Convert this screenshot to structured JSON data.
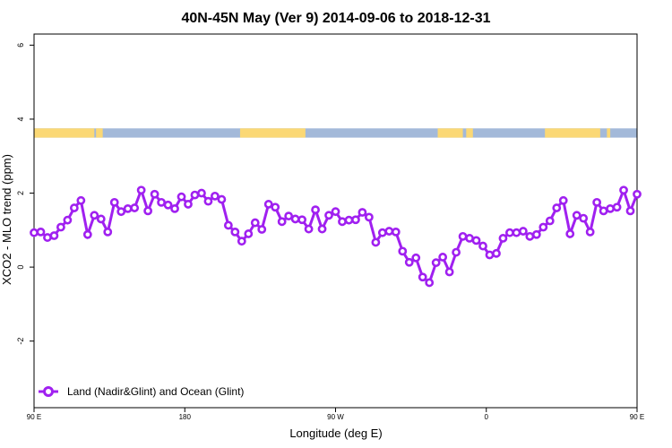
{
  "chart_data": {
    "type": "line",
    "title": "40N-45N May (Ver 9)   2014-09-06 to 2018-12-31",
    "xlabel": "Longitude (deg E)",
    "ylabel": "XCO2 - MLO trend (ppm)",
    "xlim": [
      90,
      450
    ],
    "ylim": [
      -3.8,
      6.3
    ],
    "x_ticks": [
      {
        "value": 90,
        "label": "90 E"
      },
      {
        "value": 180,
        "label": "180"
      },
      {
        "value": 270,
        "label": "90 W"
      },
      {
        "value": 360,
        "label": "0"
      },
      {
        "value": 450,
        "label": "90 E"
      },
      {
        "value": 540,
        "label": "180"
      }
    ],
    "y_ticks": [
      {
        "value": -2,
        "label": "-2"
      },
      {
        "value": 0,
        "label": "0"
      },
      {
        "value": 2,
        "label": "2"
      },
      {
        "value": 4,
        "label": "4"
      },
      {
        "value": 6,
        "label": "6"
      }
    ],
    "land_sea_band": {
      "y_range": [
        3.5,
        3.75
      ],
      "colors": {
        "ocean": "#a3b9d9",
        "land": "#fbd875"
      },
      "land_intervals": [
        [
          90,
          126
        ],
        [
          127,
          131
        ],
        [
          213,
          252
        ],
        [
          331,
          346
        ],
        [
          348,
          352
        ],
        [
          395,
          428
        ],
        [
          432,
          434
        ]
      ]
    },
    "series": [
      {
        "name": "Land (Nadir&Glint) and Ocean (Glint)",
        "color": "#a020f0",
        "x": [
          90,
          94,
          98,
          102,
          106,
          110,
          114,
          118,
          122,
          126,
          130,
          134,
          138,
          142,
          146,
          150,
          154,
          158,
          162,
          166,
          170,
          174,
          178,
          182,
          186,
          190,
          194,
          198,
          202,
          206,
          210,
          214,
          218,
          222,
          226,
          230,
          234,
          238,
          242,
          246,
          250,
          254,
          258,
          262,
          266,
          270,
          274,
          278,
          282,
          286,
          290,
          294,
          298,
          302,
          306,
          310,
          314,
          318,
          322,
          326,
          330,
          334,
          338,
          342,
          346,
          350,
          354,
          358,
          362,
          366,
          370,
          374,
          378,
          382,
          386,
          390,
          394,
          398,
          402,
          406,
          410,
          414,
          418,
          422,
          426,
          430,
          434,
          438,
          442,
          446,
          450
        ],
        "y": [
          0.93,
          0.95,
          0.8,
          0.85,
          1.08,
          1.27,
          1.6,
          1.8,
          0.88,
          1.4,
          1.3,
          0.95,
          1.75,
          1.5,
          1.58,
          1.6,
          2.08,
          1.52,
          1.97,
          1.75,
          1.68,
          1.58,
          1.9,
          1.7,
          1.95,
          2.0,
          1.78,
          1.92,
          1.83,
          1.13,
          0.95,
          0.7,
          0.9,
          1.2,
          1.02,
          1.7,
          1.62,
          1.23,
          1.38,
          1.3,
          1.28,
          1.03,
          1.55,
          1.03,
          1.4,
          1.5,
          1.23,
          1.27,
          1.28,
          1.48,
          1.35,
          0.67,
          0.93,
          0.97,
          0.95,
          0.43,
          0.13,
          0.25,
          -0.27,
          -0.42,
          0.12,
          0.27,
          -0.13,
          0.4,
          0.83,
          0.78,
          0.72,
          0.57,
          0.33,
          0.37,
          0.78,
          0.93,
          0.93,
          0.97,
          0.83,
          0.88,
          1.08,
          1.25,
          1.6,
          1.8,
          0.9,
          1.4,
          1.32,
          0.95,
          1.75,
          1.52,
          1.58,
          1.62,
          2.08,
          1.52,
          1.97
        ]
      }
    ],
    "legend": {
      "position": "bottom-left"
    },
    "grid": false
  }
}
